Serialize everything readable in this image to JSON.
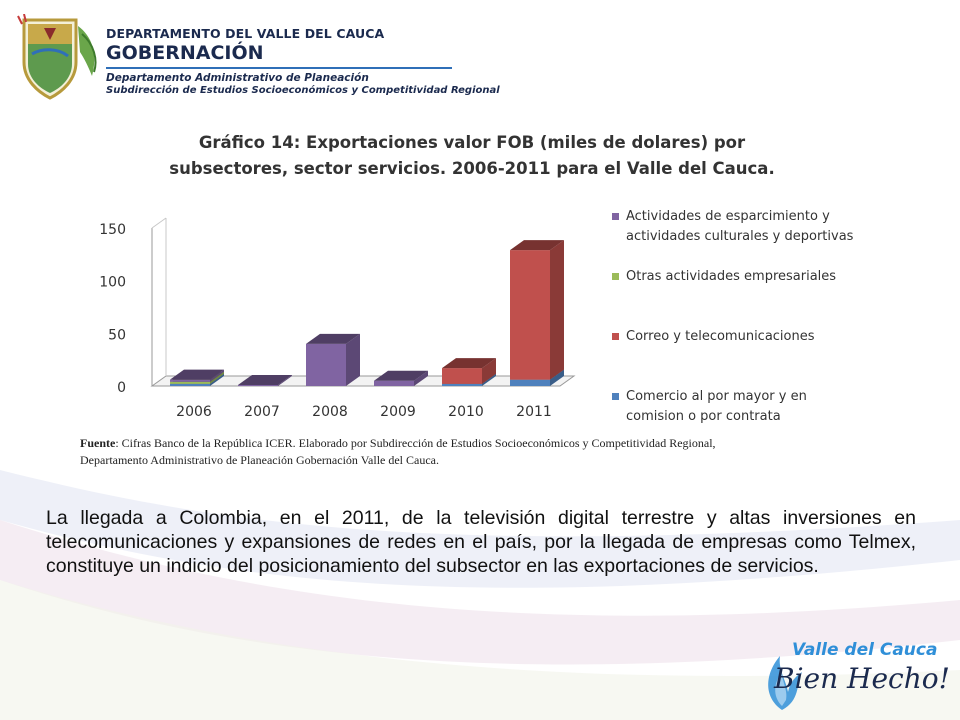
{
  "header": {
    "department": "DEPARTAMENTO DEL VALLE DEL CAUCA",
    "government": "GOBERNACIÓN",
    "office": "Departamento  Administrativo de Planeación",
    "suboffice": "Subdirección de Estudios Socioeconómicos y Competitividad Regional"
  },
  "chart_data": {
    "type": "bar",
    "stacked": true,
    "three_d": true,
    "title_line1": "Gráfico 14: Exportaciones valor FOB (miles de dolares) por",
    "title_line2": "subsectores, sector servicios. 2006-2011  para el Valle del Cauca.",
    "categories": [
      "2006",
      "2007",
      "2008",
      "2009",
      "2010",
      "2011"
    ],
    "yticks": [
      "0",
      "50",
      "100",
      "150"
    ],
    "ylim": [
      0,
      150
    ],
    "legend_position": "right",
    "series": [
      {
        "name": "Comercio al por mayor y en comision o por contrata",
        "legend_lines": [
          "Comercio al por mayor y en",
          "comision o por contrata"
        ],
        "color": "#4f81bd",
        "values": [
          2,
          0,
          0,
          0,
          2,
          6
        ]
      },
      {
        "name": "Correo y telecomunicaciones",
        "legend_lines": [
          "Correo y telecomunicaciones"
        ],
        "color": "#c0504d",
        "values": [
          0,
          0,
          0,
          0,
          15,
          123
        ]
      },
      {
        "name": "Otras actividades empresariales",
        "legend_lines": [
          "Otras actividades empresariales"
        ],
        "color": "#9bbb59",
        "values": [
          2,
          0,
          0,
          0,
          0,
          0
        ]
      },
      {
        "name": "Actividades de esparcimiento y actividades culturales y deportivas",
        "legend_lines": [
          "Actividades de esparcimiento y",
          "actividades culturales y deportivas"
        ],
        "color": "#8064a2",
        "values": [
          2,
          1,
          40,
          5,
          0,
          0
        ]
      }
    ],
    "source_label": "Fuente",
    "source_line1": ": Cifras Banco de la República ICER. Elaborado por Subdirección de Estudios Socioeconómicos y Competitividad Regional,",
    "source_line2": "Departamento Administrativo de Planeación Gobernación Valle del Cauca."
  },
  "body": {
    "paragraph": "La llegada a Colombia, en el 2011, de la televisión digital terrestre y altas inversiones en telecomunicaciones y expansiones de redes en el país, por la llegada de empresas como Telmex, constituye un indicio del posicionamiento del subsector en las exportaciones de servicios."
  },
  "logo": {
    "line1": "Valle del Cauca",
    "line2": "Bien Hecho!"
  }
}
